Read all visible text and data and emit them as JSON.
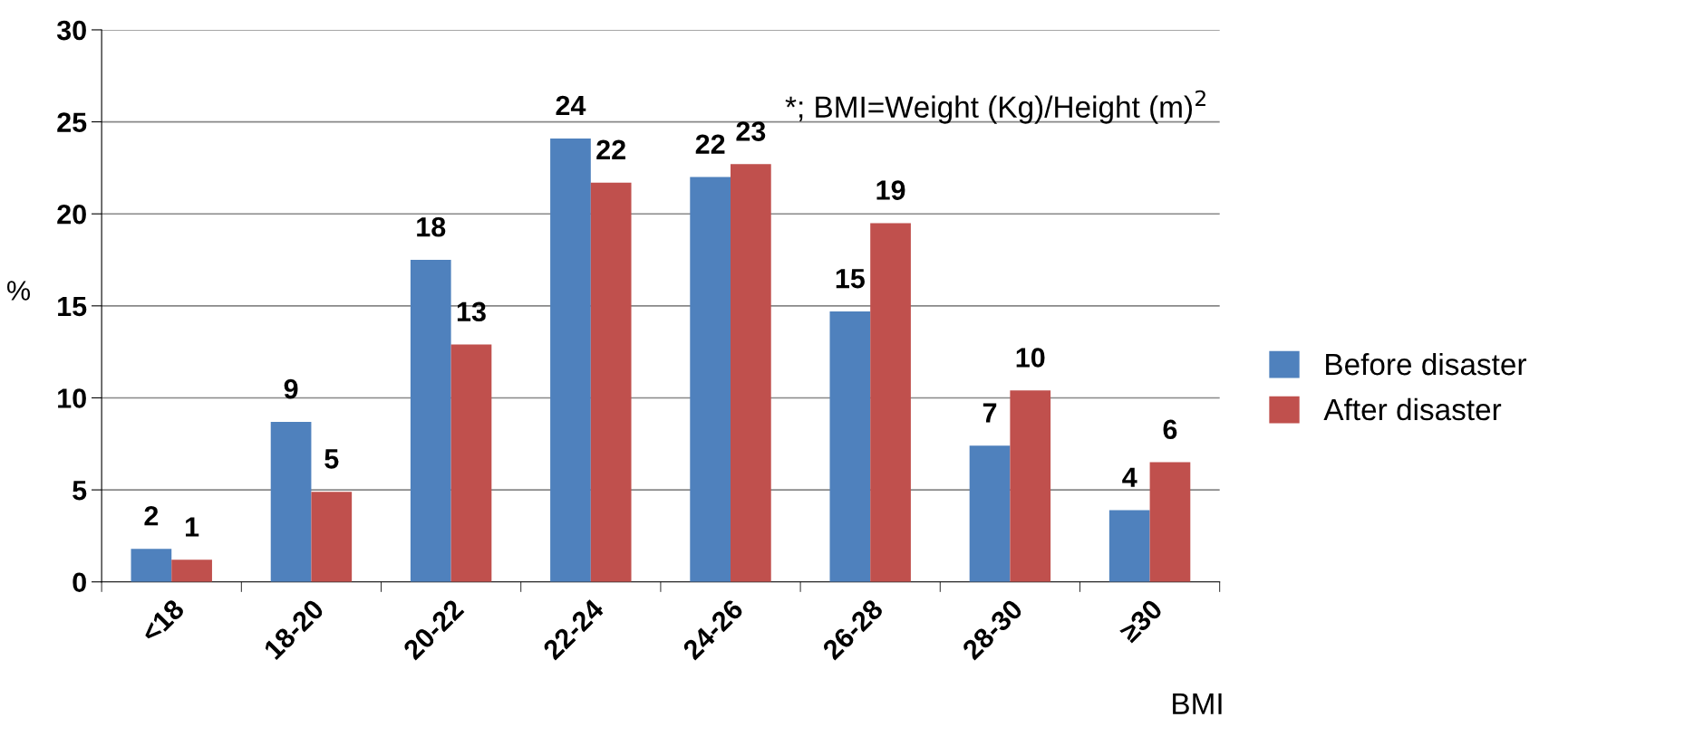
{
  "chart_data": {
    "type": "bar",
    "xlabel": "BMI",
    "ylabel": "%",
    "categories": [
      "<18",
      "18-20",
      "20-22",
      "22-24",
      "24-26",
      "26-28",
      "28-30",
      "≥30"
    ],
    "series": [
      {
        "name": "Before disaster",
        "color": "#4f81bd",
        "values": [
          1.8,
          8.7,
          17.5,
          24.1,
          22.0,
          14.7,
          7.4,
          3.9
        ],
        "value_labels": [
          "2",
          "9",
          "18",
          "24",
          "22",
          "15",
          "7",
          "4"
        ]
      },
      {
        "name": "After disaster",
        "color": "#c0504d",
        "values": [
          1.2,
          4.9,
          12.9,
          21.7,
          22.7,
          19.5,
          10.4,
          6.5
        ],
        "value_labels": [
          "1",
          "5",
          "13",
          "22",
          "23",
          "19",
          "10",
          "6"
        ]
      }
    ],
    "ylim": [
      0,
      30
    ],
    "yticks": [
      0,
      5,
      10,
      15,
      20,
      25,
      30
    ],
    "grid": "y",
    "legend": "right",
    "annotations": [
      {
        "text": "*; BMI=Weight (Kg)/Height (m)$^{2}$"
      }
    ]
  }
}
